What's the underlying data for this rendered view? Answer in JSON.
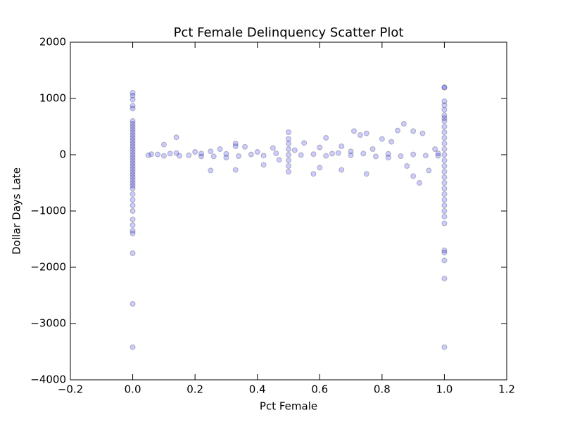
{
  "chart_data": {
    "type": "scatter",
    "title": "Pct Female Delinquency Scatter Plot",
    "x_label": "Pct Female",
    "y_label": "Dollar Days Late",
    "color": "#0000ff",
    "xlim": [
      -0.2,
      1.2
    ],
    "xticks": [
      {
        "value": -0.2,
        "label": "−0.2"
      },
      {
        "value": 0,
        "label": "0.0"
      },
      0.2,
      0.4,
      0.6,
      0.8,
      {
        "value": 1,
        "label": "1.0"
      },
      1.2
    ],
    "ylim": [
      -4000,
      2000
    ],
    "yticks": [
      {
        "value": -4000,
        "label": "−4000"
      },
      {
        "value": -3000,
        "label": "−3000"
      },
      {
        "value": -2000,
        "label": "−2000"
      },
      {
        "value": -1000,
        "label": "−1000"
      },
      0,
      1000,
      2000
    ],
    "x": [
      0,
      0,
      0,
      0,
      0,
      0,
      0,
      0,
      0,
      0,
      0,
      0,
      0,
      0,
      0,
      0,
      0,
      0,
      0,
      0,
      0,
      0,
      0,
      0,
      0,
      0,
      0,
      0,
      0,
      0,
      0,
      0,
      0,
      0,
      0,
      0,
      0,
      0,
      0,
      0,
      0,
      1,
      1,
      1,
      1,
      1,
      1,
      1,
      1,
      1,
      1,
      1,
      1,
      1,
      1,
      1,
      1,
      1,
      1,
      1,
      1,
      1,
      1,
      1,
      1,
      1,
      1,
      1,
      1,
      1,
      1,
      1,
      0.5,
      0.5,
      0.5,
      0.5,
      0.5,
      0.5,
      0.5,
      0.5,
      0.05,
      0.08,
      0.1,
      0.12,
      0.14,
      0.15,
      0.2,
      0.22,
      0.25,
      0.25,
      0.28,
      0.3,
      0.33,
      0.33,
      0.33,
      0.36,
      0.4,
      0.42,
      0.45,
      0.47,
      0.52,
      0.55,
      0.58,
      0.6,
      0.6,
      0.62,
      0.64,
      0.67,
      0.67,
      0.7,
      0.71,
      0.73,
      0.75,
      0.75,
      0.77,
      0.8,
      0.82,
      0.83,
      0.85,
      0.87,
      0.88,
      0.9,
      0.9,
      0.92,
      0.93,
      0.95,
      0.97,
      0.98,
      0.06,
      0.1,
      0.14,
      0.18,
      0.22,
      0.26,
      0.3,
      0.34,
      0.38,
      0.42,
      0.46,
      0.54,
      0.58,
      0.62,
      0.66,
      0.7,
      0.74,
      0.78,
      0.82,
      0.86,
      0.9,
      0.94,
      0.98
    ],
    "values": [
      1100,
      1050,
      980,
      870,
      820,
      600,
      550,
      500,
      450,
      400,
      350,
      300,
      250,
      200,
      150,
      100,
      50,
      0,
      -50,
      -100,
      -150,
      -200,
      -250,
      -300,
      -350,
      -400,
      -450,
      -500,
      -550,
      -600,
      -700,
      -800,
      -900,
      -1000,
      -1150,
      -1250,
      -1350,
      -1400,
      -1750,
      -2650,
      -3420,
      1200,
      1190,
      950,
      880,
      800,
      700,
      650,
      600,
      500,
      400,
      300,
      200,
      100,
      0,
      -100,
      -200,
      -300,
      -400,
      -500,
      -600,
      -700,
      -800,
      -900,
      -1000,
      -1100,
      -1220,
      -1700,
      -1740,
      -1880,
      -2200,
      -3420,
      400,
      280,
      200,
      100,
      0,
      -100,
      -200,
      -300,
      -10,
      5,
      180,
      20,
      310,
      -20,
      50,
      -30,
      60,
      -280,
      100,
      -50,
      200,
      150,
      -270,
      140,
      50,
      -180,
      120,
      -90,
      80,
      210,
      -340,
      130,
      -230,
      300,
      20,
      150,
      -270,
      60,
      420,
      350,
      380,
      -340,
      100,
      280,
      -50,
      230,
      430,
      550,
      -200,
      420,
      -380,
      -500,
      380,
      -280,
      100,
      -20,
      10,
      -20,
      30,
      -10,
      20,
      -30,
      15,
      -25,
      5,
      -15,
      25,
      -5,
      10,
      -20,
      30,
      -10,
      20,
      -30,
      15,
      -25,
      5,
      -15,
      25
    ]
  }
}
